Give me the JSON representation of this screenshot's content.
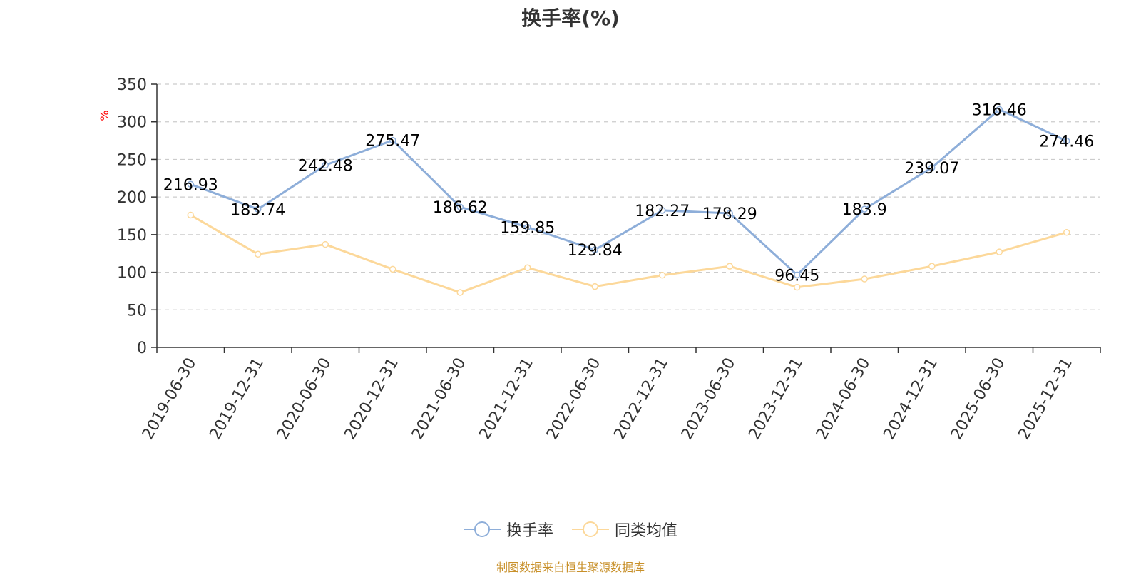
{
  "title": "换手率(%)",
  "source": "制图数据来自恒生聚源数据库",
  "colors": {
    "turnover": "#8eaed9",
    "peer_avg": "#fcd89a",
    "axis": "#333333",
    "grid": "#cccccc",
    "unit": "#ff0000"
  },
  "chart_data": {
    "type": "line",
    "title": "换手率(%)",
    "ylabel": "%",
    "ylim": [
      0,
      350
    ],
    "yticks": [
      0,
      50,
      100,
      150,
      200,
      250,
      300,
      350
    ],
    "grid": true,
    "legend_position": "bottom",
    "categories": [
      "2019-06-30",
      "2019-12-31",
      "2020-06-30",
      "2020-12-31",
      "2021-06-30",
      "2021-12-31",
      "2022-06-30",
      "2022-12-31",
      "2023-06-30",
      "2023-12-31",
      "2024-06-30",
      "2024-12-31",
      "2025-06-30",
      "2025-12-31"
    ],
    "series": [
      {
        "name": "换手率",
        "color": "#8eaed9",
        "show_labels": true,
        "values": [
          216.93,
          183.74,
          242.48,
          275.47,
          186.62,
          159.85,
          129.84,
          182.27,
          178.29,
          96.45,
          183.9,
          239.07,
          316.46,
          274.46
        ],
        "labels": [
          "216.93",
          "183.74",
          "242.48",
          "275.47",
          "186.62",
          "159.85",
          "129.84",
          "182.27",
          "178.29",
          "96.45",
          "183.9",
          "239.07",
          "316.46",
          "274.46"
        ]
      },
      {
        "name": "同类均值",
        "color": "#fcd89a",
        "show_labels": false,
        "values": [
          176,
          124,
          137,
          104,
          73,
          106,
          81,
          96,
          108,
          80,
          91,
          108,
          127,
          153
        ]
      }
    ]
  }
}
